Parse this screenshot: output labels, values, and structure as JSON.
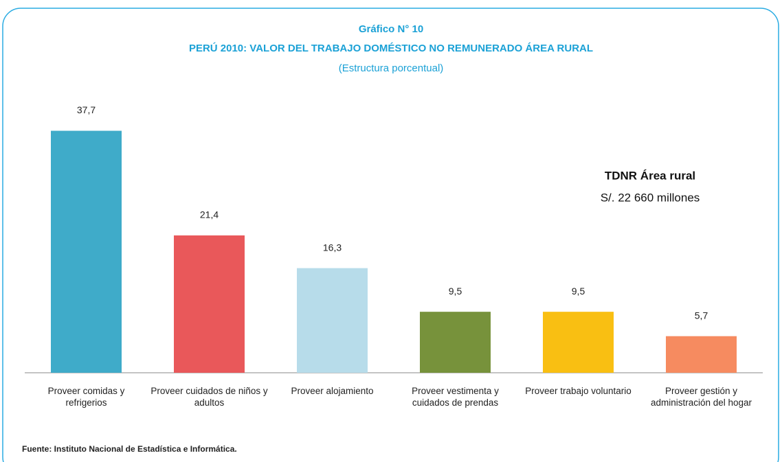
{
  "chart_data": {
    "type": "bar",
    "title": "Gráfico N° 10",
    "subtitle": "PERÚ 2010: VALOR DEL TRABAJO DOMÉSTICO NO REMUNERADO ÁREA RURAL",
    "unit_note": "(Estructura porcentual)",
    "categories": [
      "Proveer comidas y refrigerios",
      "Proveer cuidados de niños y adultos",
      "Proveer alojamiento",
      "Proveer vestimenta y cuidados de prendas",
      "Proveer trabajo voluntario",
      "Proveer gestión y administración del hogar"
    ],
    "values": [
      37.7,
      21.4,
      16.3,
      9.5,
      9.5,
      5.7
    ],
    "value_labels": [
      "37,7",
      "21,4",
      "16,3",
      "9,5",
      "9,5",
      "5,7"
    ],
    "colors": [
      "#3fabc9",
      "#e9585a",
      "#b7dcea",
      "#77923b",
      "#f9bf12",
      "#f68b60"
    ],
    "ylim": [
      0,
      40
    ],
    "annotation_title": "TDNR Área rural",
    "annotation_text": "S/. 22 660 millones",
    "source": "Fuente: Instituto Nacional de Estadística e Informática."
  }
}
